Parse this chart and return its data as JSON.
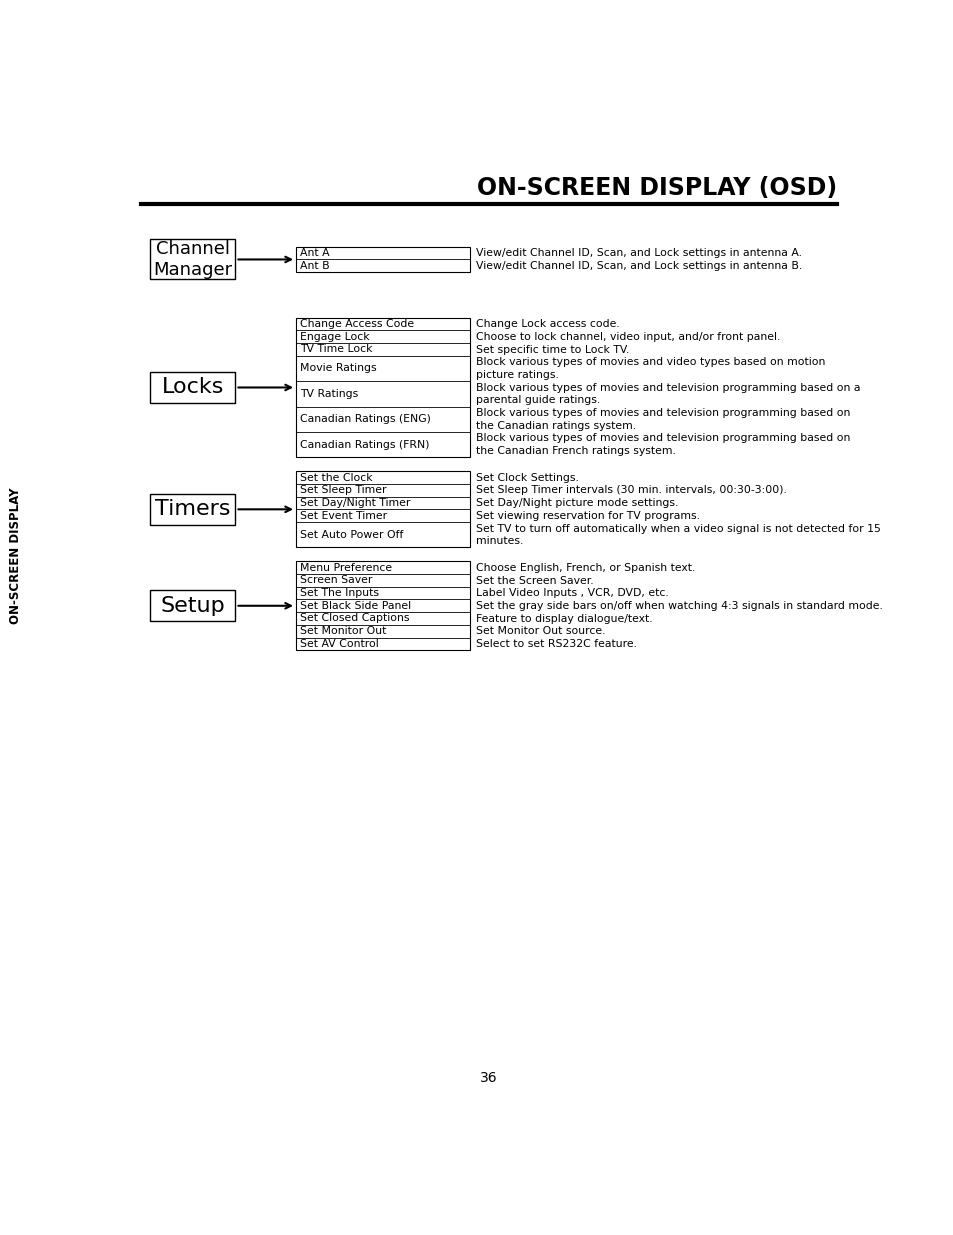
{
  "title": "ON-SCREEN DISPLAY (OSD)",
  "bg_color": "#ffffff",
  "sidebar_text": "ON-SCREEN DISPLAY",
  "sidebar_bg": "#d8d8d8",
  "page_number": "36",
  "sections": [
    {
      "label": "Channel\nManager",
      "label_fontsize": 13,
      "items": [
        {
          "text": "Ant A",
          "desc": "View/edit Channel ID, Scan, and Lock settings in antenna A.",
          "rows": 1
        },
        {
          "text": "Ant B",
          "desc": "View/edit Channel ID, Scan, and Lock settings in antenna B.",
          "rows": 1
        }
      ]
    },
    {
      "label": "Locks",
      "label_fontsize": 16,
      "items": [
        {
          "text": "Change Access Code",
          "desc": "Change Lock access code.",
          "rows": 1
        },
        {
          "text": "Engage Lock",
          "desc": "Choose to lock channel, video input, and/or front panel.",
          "rows": 1
        },
        {
          "text": "TV Time Lock",
          "desc": "Set specific time to Lock TV.",
          "rows": 1
        },
        {
          "text": "Movie Ratings",
          "desc": "Block various types of movies and video types based on motion\npicture ratings.",
          "rows": 2
        },
        {
          "text": "TV Ratings",
          "desc": "Block various types of movies and television programming based on a\nparental guide ratings.",
          "rows": 2
        },
        {
          "text": "Canadian Ratings (ENG)",
          "desc": "Block various types of movies and television programming based on\nthe Canadian ratings system.",
          "rows": 2
        },
        {
          "text": "Canadian Ratings (FRN)",
          "desc": "Block various types of movies and television programming based on\nthe Canadian French ratings system.",
          "rows": 2
        }
      ]
    },
    {
      "label": "Timers",
      "label_fontsize": 16,
      "items": [
        {
          "text": "Set the Clock",
          "desc": "Set Clock Settings.",
          "rows": 1
        },
        {
          "text": "Set Sleep Timer",
          "desc": "Set Sleep Timer intervals (30 min. intervals, 00:30-3:00).",
          "rows": 1
        },
        {
          "text": "Set Day/Night Timer",
          "desc": "Set Day/Night picture mode settings.",
          "rows": 1
        },
        {
          "text": "Set Event Timer",
          "desc": "Set viewing reservation for TV programs.",
          "rows": 1
        },
        {
          "text": "Set Auto Power Off",
          "desc": "Set TV to turn off automatically when a video signal is not detected for 15\nminutes.",
          "rows": 2
        }
      ]
    },
    {
      "label": "Setup",
      "label_fontsize": 16,
      "items": [
        {
          "text": "Menu Preference",
          "desc": "Choose English, French, or Spanish text.",
          "rows": 1
        },
        {
          "text": "Screen Saver",
          "desc": "Set the Screen Saver.",
          "rows": 1
        },
        {
          "text": "Set The Inputs",
          "desc": "Label Video Inputs , VCR, DVD, etc.",
          "rows": 1
        },
        {
          "text": "Set Black Side Panel",
          "desc": "Set the gray side bars on/off when watching 4:3 signals in standard mode.",
          "rows": 1
        },
        {
          "text": "Set Closed Captions",
          "desc": "Feature to display dialogue/text.",
          "rows": 1
        },
        {
          "text": "Set Monitor Out",
          "desc": "Set Monitor Out source.",
          "rows": 1
        },
        {
          "text": "Set AV Control",
          "desc": "Select to set RS232C feature.",
          "rows": 1
        }
      ]
    }
  ]
}
